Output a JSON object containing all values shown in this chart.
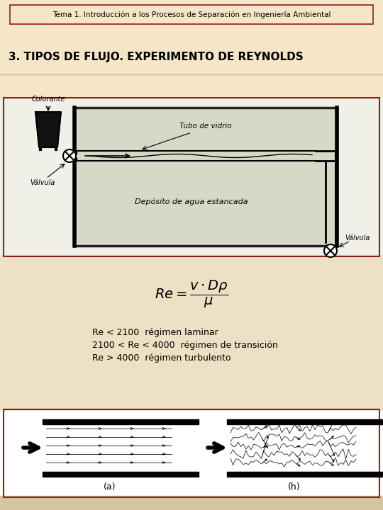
{
  "bg_color_top": "#f5e6c8",
  "bg_color_mid": "#ede0c4",
  "bg_color_bot": "#d4c4a0",
  "white": "#ffffff",
  "header_text": "Tema 1. Introducción a los Procesos de Separación en Ingeniería Ambiental",
  "header_border_color": "#8B2020",
  "title_text": "3. TIPOS DE FLUJO. EXPERIMENTO DE REYNOLDS",
  "title_fontsize": 11,
  "header_fontsize": 7.5,
  "re_lines": [
    "Re < 2100  régimen laminar",
    "2100 < Re < 4000  régimen de transición",
    "Re > 4000  régimen turbulento"
  ],
  "re_fontsize": 9,
  "label_a": "(a)",
  "label_b": "(h)",
  "section_border_color": "#8B2020",
  "diagram_border_color": "#8B2020"
}
